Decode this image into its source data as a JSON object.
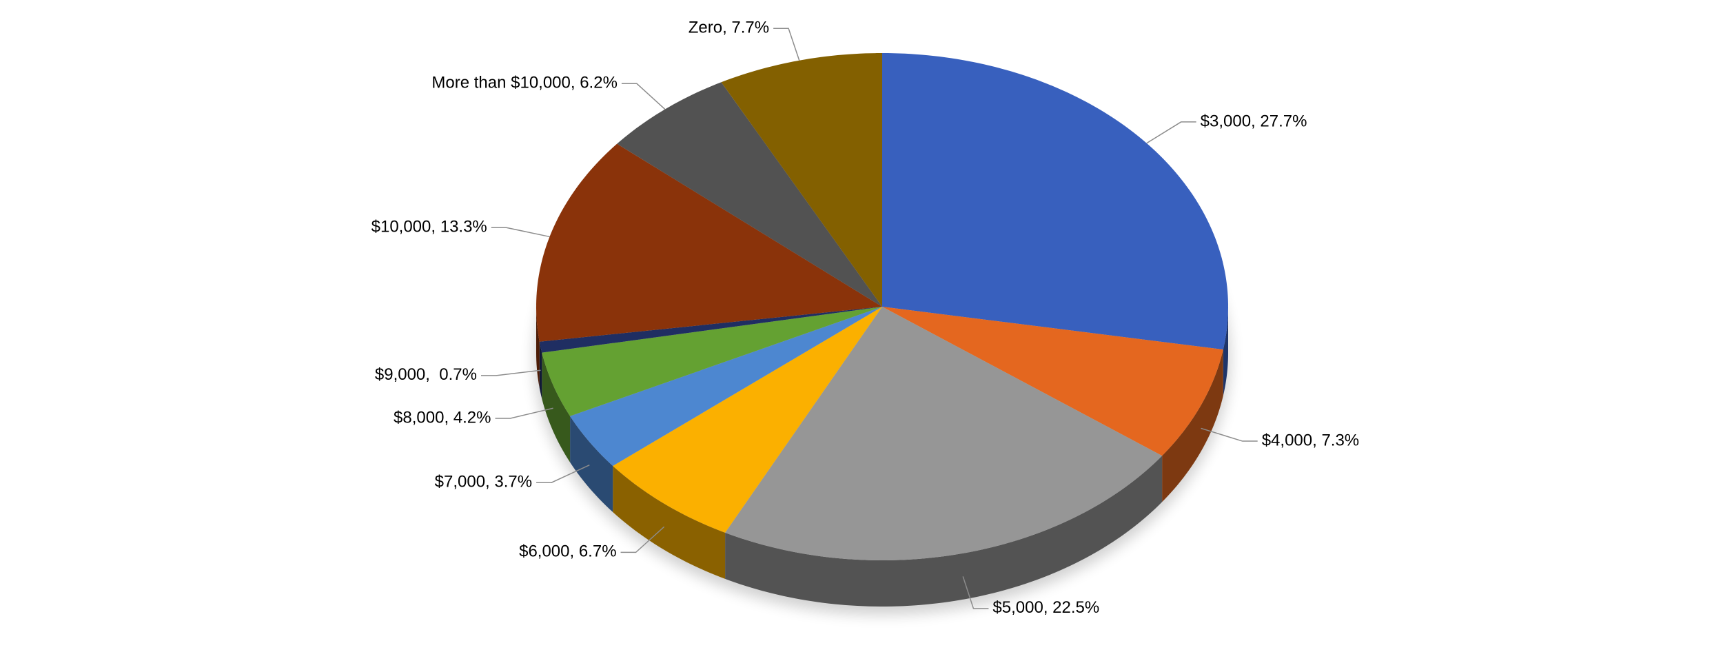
{
  "chart_data": {
    "type": "pie",
    "values": [
      27.7,
      7.3,
      22.5,
      6.7,
      3.7,
      4.2,
      0.7,
      13.3,
      6.2,
      7.7
    ],
    "value_labels": [
      "$3,000, 27.7%",
      "$4,000, 7.3%",
      "$5,000, 22.5%",
      "$6,000, 6.7%",
      "$7,000, 3.7%",
      "$8,000, 4.2%",
      "$9,000,  0.7%",
      "$10,000, 13.3%",
      "More than $10,000, 6.2%",
      "Zero, 7.7%"
    ],
    "colors": [
      "#3860be",
      "#e4671f",
      "#969696",
      "#fbb000",
      "#4d87d0",
      "#64a132",
      "#1f2e62",
      "#8a330a",
      "#525252",
      "#836000"
    ]
  }
}
